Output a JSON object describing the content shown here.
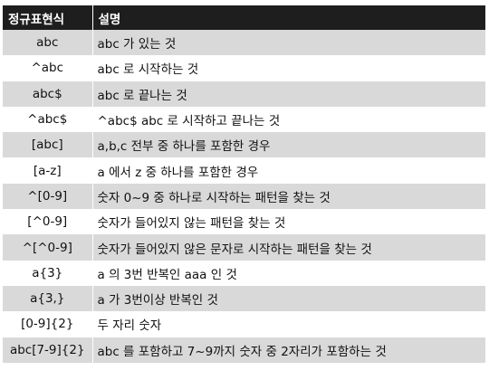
{
  "table": {
    "headers": [
      "정규표현식",
      "설명"
    ],
    "rows": [
      {
        "pattern": "abc",
        "desc": "abc 가 있는 것"
      },
      {
        "pattern": "^abc",
        "desc": "abc 로 시작하는 것"
      },
      {
        "pattern": "abc$",
        "desc": "abc 로 끝나는 것"
      },
      {
        "pattern": "^abc$",
        "desc": "^abc$ abc 로 시작하고 끝나는 것"
      },
      {
        "pattern": "[abc]",
        "desc": "a,b,c 전부 중 하나를 포함한 경우"
      },
      {
        "pattern": "[a-z]",
        "desc": "a 에서 z 중 하나를 포함한 경우"
      },
      {
        "pattern": "^[0-9]",
        "desc": "숫자 0~9 중 하나로 시작하는 패턴을 찾는 것"
      },
      {
        "pattern": "[^0-9]",
        "desc": "숫자가 들어있지 않는 패턴을 찾는 것"
      },
      {
        "pattern": "^[^0-9]",
        "desc": "숫자가 들어있지 않은 문자로 시작하는 패턴을 찾는 것"
      },
      {
        "pattern": "a{3}",
        "desc": "a 의 3번 반복인 aaa 인 것"
      },
      {
        "pattern": "a{3,}",
        "desc": "a 가 3번이상 반복인 것"
      },
      {
        "pattern": "[0-9]{2}",
        "desc": "두 자리 숫자"
      },
      {
        "pattern": "abc[7-9]{2}",
        "desc": "abc 를 포함하고 7~9까지 숫자 중 2자리가 포함하는 것"
      }
    ]
  }
}
